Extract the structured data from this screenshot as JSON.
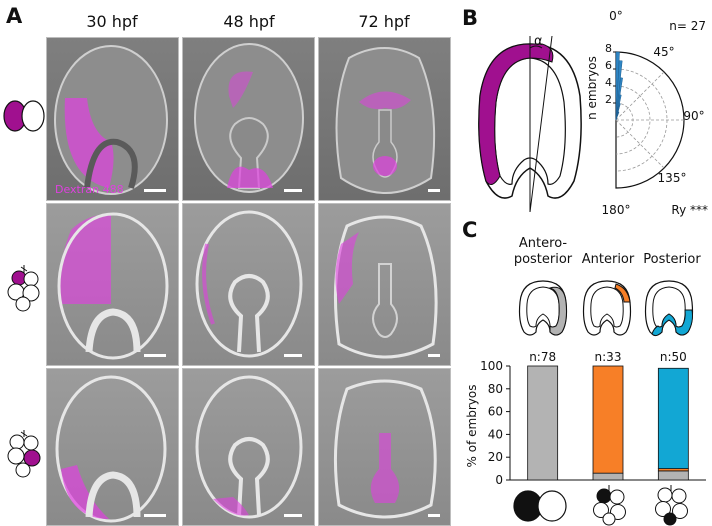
{
  "panels": {
    "a": "A",
    "b": "B",
    "c": "C"
  },
  "columns": [
    "30 hpf",
    "48 hpf",
    "72 hpf"
  ],
  "dextran_label": "Dextran 488",
  "polar": {
    "n_label": "n= 27",
    "angles": [
      "0°",
      "45°",
      "90°",
      "135°",
      "180°"
    ],
    "radial_ticks": [
      "2",
      "4",
      "6",
      "8"
    ],
    "radial_label": "n embryos",
    "alpha": "α",
    "test_label": "Ry ***"
  },
  "chart_data": {
    "type": "bar",
    "stacked": true,
    "categories": [
      "Antero-posterior",
      "Anterior",
      "Posterior"
    ],
    "category_labels": [
      "Antero-\nposterior",
      "Anterior",
      "Posterior"
    ],
    "counts": [
      "n:78",
      "n:33",
      "n:50"
    ],
    "series": [
      {
        "values": [
          100,
          6,
          8
        ],
        "color": "#b3b3b3"
      },
      {
        "values": [
          0,
          94,
          2
        ],
        "color": "#f77f27"
      },
      {
        "values": [
          0,
          0,
          88
        ],
        "color": "#12a7d4"
      }
    ],
    "ylabel": "% of embryos",
    "yticks": [
      0,
      20,
      40,
      60,
      80,
      100
    ],
    "ylim": [
      0,
      100
    ]
  },
  "colors": {
    "magenta": "#a0108f",
    "fluor": "#e040e0",
    "orange": "#f77f27",
    "blue": "#12a7d4",
    "gray": "#b3b3b3",
    "polar_bar": "#2f86c4"
  }
}
